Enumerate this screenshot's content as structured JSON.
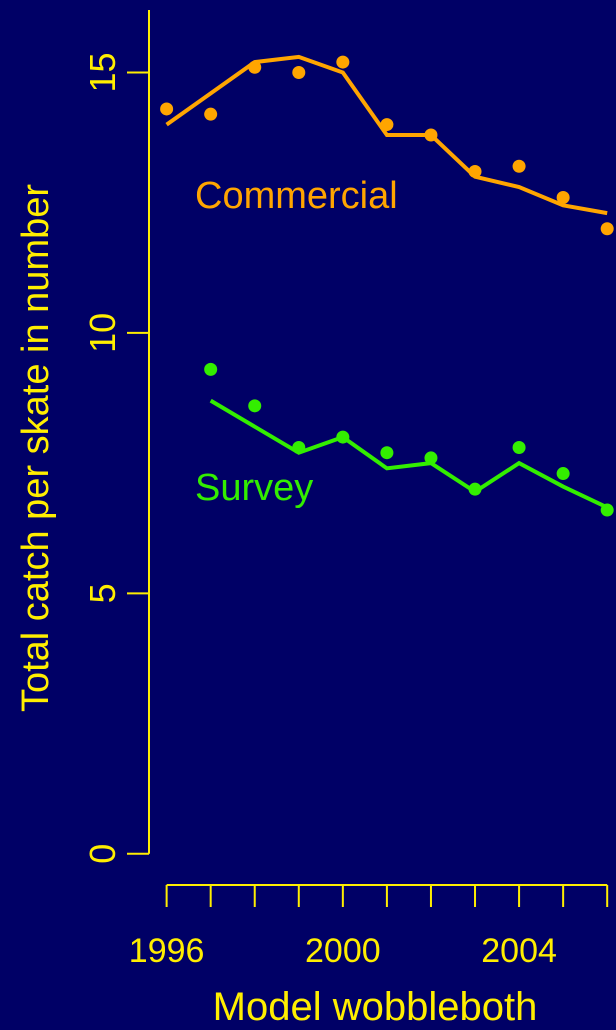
{
  "chart_data": {
    "type": "line",
    "title": "",
    "xlabel": "Model wobbleboth",
    "ylabel": "Total catch per skate in number",
    "xlim": [
      1995.6,
      2006.2
    ],
    "ylim": [
      -0.6,
      16.2
    ],
    "x_ticks": [
      1996,
      1997,
      1998,
      1999,
      2000,
      2001,
      2002,
      2003,
      2004,
      2005,
      2006
    ],
    "x_tick_labels": [
      {
        "value": 1996,
        "label": "1996"
      },
      {
        "value": 2000,
        "label": "2000"
      },
      {
        "value": 2004,
        "label": "2004"
      }
    ],
    "y_ticks": [
      {
        "value": 0,
        "label": "0"
      },
      {
        "value": 5,
        "label": "5"
      },
      {
        "value": 10,
        "label": "10"
      },
      {
        "value": 15,
        "label": "15"
      }
    ],
    "grid": false,
    "series": [
      {
        "name": "Commercial",
        "color": "#FFA500",
        "x": [
          1996,
          1997,
          1998,
          1999,
          2000,
          2001,
          2002,
          2003,
          2004,
          2005,
          2006
        ],
        "observed": [
          14.3,
          14.2,
          15.1,
          15.0,
          15.2,
          14.0,
          13.8,
          13.1,
          13.2,
          12.6,
          12.0
        ],
        "fitted": [
          14.0,
          14.6,
          15.2,
          15.3,
          15.0,
          13.8,
          13.8,
          13.0,
          12.8,
          12.45,
          12.3
        ]
      },
      {
        "name": "Survey",
        "color": "#33EE00",
        "x": [
          1997,
          1998,
          1999,
          2000,
          2001,
          2002,
          2003,
          2004,
          2005,
          2006
        ],
        "observed": [
          9.3,
          8.6,
          7.8,
          8.0,
          7.7,
          7.6,
          7.0,
          7.8,
          7.3,
          6.6
        ],
        "fitted": [
          8.7,
          8.2,
          7.7,
          8.0,
          7.4,
          7.5,
          6.95,
          7.5,
          7.05,
          6.65
        ]
      }
    ]
  },
  "colors": {
    "background": "#000066",
    "axis": "#FFEE00",
    "label_text": "#FFEE00"
  }
}
